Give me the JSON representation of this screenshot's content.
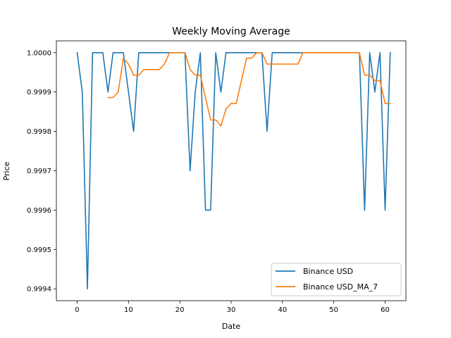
{
  "chart_data": {
    "type": "line",
    "title": "Weekly Moving Average",
    "xlabel": "Date",
    "ylabel": "Price",
    "xlim": [
      -4.05,
      64.05
    ],
    "ylim": [
      0.99937,
      1.00003
    ],
    "xticks": [
      0,
      10,
      20,
      30,
      40,
      50,
      60
    ],
    "yticks": [
      0.9994,
      0.9995,
      0.9996,
      0.9997,
      0.9998,
      0.9999,
      1.0
    ],
    "ytick_labels": [
      "0.9994",
      "0.9995",
      "0.9996",
      "0.9997",
      "0.9998",
      "0.9999",
      "1.0000"
    ],
    "grid": false,
    "legend_position": "lower right",
    "series": [
      {
        "name": "Binance USD",
        "color": "#1f77b4",
        "x": [
          0,
          1,
          2,
          3,
          4,
          5,
          6,
          7,
          8,
          9,
          10,
          11,
          12,
          13,
          14,
          15,
          16,
          17,
          18,
          19,
          20,
          21,
          22,
          23,
          24,
          25,
          26,
          27,
          28,
          29,
          30,
          31,
          32,
          33,
          34,
          35,
          36,
          37,
          38,
          39,
          40,
          41,
          42,
          43,
          44,
          45,
          46,
          47,
          48,
          49,
          50,
          51,
          52,
          53,
          54,
          55,
          56,
          57,
          58,
          59,
          60,
          61
        ],
        "y": [
          1.0,
          0.9999,
          0.9994,
          1.0,
          1.0,
          1.0,
          0.9999,
          1.0,
          1.0,
          1.0,
          0.9999,
          0.9998,
          1.0,
          1.0,
          1.0,
          1.0,
          1.0,
          1.0,
          1.0,
          1.0,
          1.0,
          1.0,
          0.9997,
          0.9999,
          1.0,
          0.9996,
          0.9996,
          1.0,
          0.9999,
          1.0,
          1.0,
          1.0,
          1.0,
          1.0,
          1.0,
          1.0,
          1.0,
          0.9998,
          1.0,
          1.0,
          1.0,
          1.0,
          1.0,
          1.0,
          1.0,
          1.0,
          1.0,
          1.0,
          1.0,
          1.0,
          1.0,
          1.0,
          1.0,
          1.0,
          1.0,
          1.0,
          0.9996,
          1.0,
          0.9999,
          1.0,
          0.9996,
          1.0
        ]
      },
      {
        "name": "Binance USD_MA_7",
        "color": "#ff7f0e",
        "x": [
          6,
          7,
          8,
          9,
          10,
          11,
          12,
          13,
          14,
          15,
          16,
          17,
          18,
          19,
          20,
          21,
          22,
          23,
          24,
          25,
          26,
          27,
          28,
          29,
          30,
          31,
          32,
          33,
          34,
          35,
          36,
          37,
          38,
          39,
          40,
          41,
          42,
          43,
          44,
          45,
          46,
          47,
          48,
          49,
          50,
          51,
          52,
          53,
          54,
          55,
          56,
          57,
          58,
          59,
          60,
          61
        ],
        "y": [
          0.999886,
          0.999886,
          0.9999,
          0.999986,
          0.999971,
          0.999943,
          0.999943,
          0.999957,
          0.999957,
          0.999957,
          0.999957,
          0.999971,
          1.0,
          1.0,
          1.0,
          1.0,
          0.999957,
          0.999943,
          0.999943,
          0.999886,
          0.999829,
          0.999829,
          0.999814,
          0.999857,
          0.999871,
          0.999871,
          0.999929,
          0.999986,
          0.999986,
          1.0,
          1.0,
          0.999971,
          0.999971,
          0.999971,
          0.999971,
          0.999971,
          0.999971,
          0.999971,
          1.0,
          1.0,
          1.0,
          1.0,
          1.0,
          1.0,
          1.0,
          1.0,
          1.0,
          1.0,
          1.0,
          1.0,
          0.999943,
          0.999943,
          0.999929,
          0.999929,
          0.999871,
          0.999871
        ]
      }
    ]
  }
}
